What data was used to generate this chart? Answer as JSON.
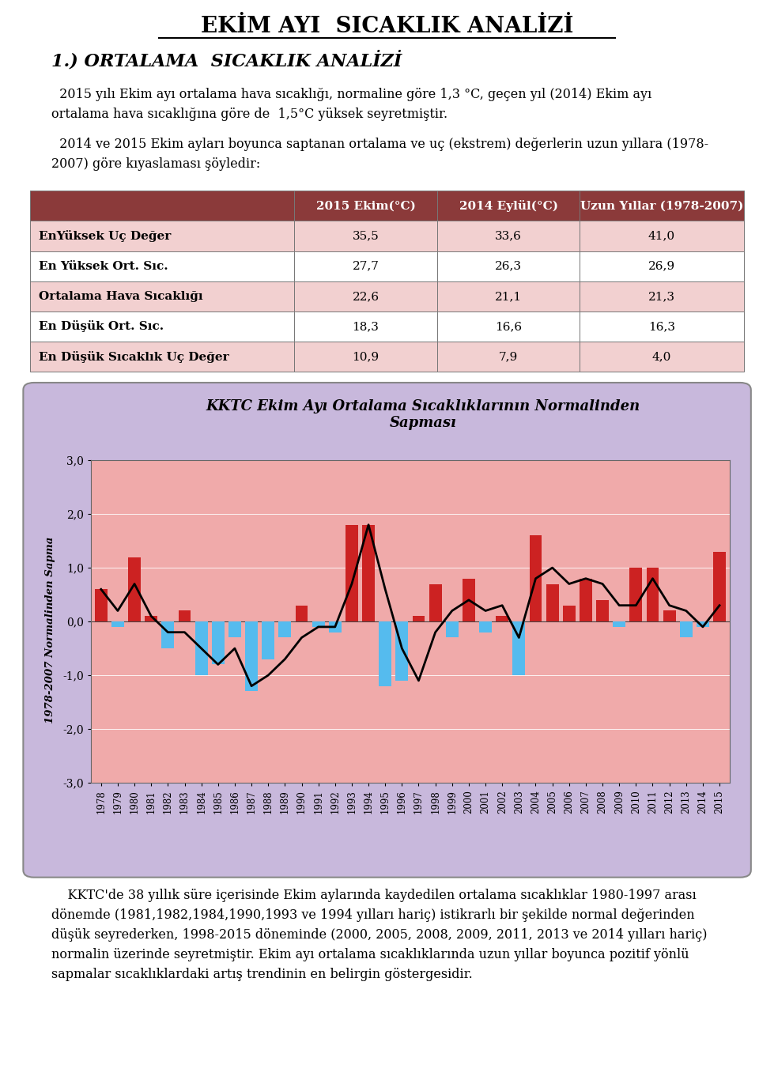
{
  "title": "EKİM AYI  SICAKLIK ANALİZİ",
  "subtitle": "1.) ORTALAMA  SICAKLIK ANALİZİ",
  "paragraph1": "  2015 yılı Ekim ayı ortalama hava sıcaklığı, normaline göre 1,3 °C, geçen yıl (2014) Ekim ayı\nortalama hava sıcaklığına göre de  1,5°C yüksek seyretmiştir.",
  "paragraph2": "  2014 ve 2015 Ekim ayları boyunca saptanan ortalama ve uç (ekstrem) değerlerin uzun yıllara (1978-\n2007) göre kıyaslaması şöyledir:",
  "table_headers": [
    "",
    "2015 Ekim(°C)",
    "2014 Eylül(°C)",
    "Uzun Yıllar (1978-2007)"
  ],
  "table_rows": [
    [
      "EnYüksek Uç Değer",
      "35,5",
      "33,6",
      "41,0"
    ],
    [
      "En Yüksek Ort. Sıc.",
      "27,7",
      "26,3",
      "26,9"
    ],
    [
      "Ortalama Hava Sıcaklığı",
      "22,6",
      "21,1",
      "21,3"
    ],
    [
      "En Düşük Ort. Sıc.",
      "18,3",
      "16,6",
      "16,3"
    ],
    [
      "En Düşük Sıcaklık Uç Değer",
      "10,9",
      "7,9",
      "4,0"
    ]
  ],
  "chart_title": "KKTC Ekim Ayı Ortalama Sıcaklıklarının Normalinden\nSapması",
  "ylabel": "1978-2007 Normalinden Sapma",
  "years": [
    1978,
    1979,
    1980,
    1981,
    1982,
    1983,
    1984,
    1985,
    1986,
    1987,
    1988,
    1989,
    1990,
    1991,
    1992,
    1993,
    1994,
    1995,
    1996,
    1997,
    1998,
    1999,
    2000,
    2001,
    2002,
    2003,
    2004,
    2005,
    2006,
    2007,
    2008,
    2009,
    2010,
    2011,
    2012,
    2013,
    2014,
    2015
  ],
  "bar_values": [
    0.6,
    -0.1,
    1.2,
    0.1,
    -0.5,
    0.2,
    -1.0,
    -0.8,
    -0.3,
    -1.3,
    -0.7,
    -0.3,
    0.3,
    -0.1,
    -0.2,
    1.8,
    1.8,
    -1.2,
    -1.1,
    0.1,
    0.7,
    -0.3,
    0.8,
    -0.2,
    0.1,
    -1.0,
    1.6,
    0.7,
    0.3,
    0.8,
    0.4,
    -0.1,
    1.0,
    1.0,
    0.2,
    -0.3,
    -0.1,
    1.3
  ],
  "line_values": [
    0.6,
    0.2,
    0.7,
    0.1,
    -0.2,
    -0.2,
    -0.5,
    -0.8,
    -0.5,
    -1.2,
    -1.0,
    -0.7,
    -0.3,
    -0.1,
    -0.1,
    0.7,
    1.8,
    0.6,
    -0.5,
    -1.1,
    -0.2,
    0.2,
    0.4,
    0.2,
    0.3,
    -0.3,
    0.8,
    1.0,
    0.7,
    0.8,
    0.7,
    0.3,
    0.3,
    0.8,
    0.3,
    0.2,
    -0.1,
    0.3
  ],
  "paragraph3": "    KKTC'de 38 yıllık süre içerisinde Ekim aylarında kaydedilen ortalama sıcaklıklar 1980-1997 arası\ndönemde (1981,1982,1984,1990,1993 ve 1994 yılları hariç) istikrarlı bir şekilde normal değerinden\ndüşük seyrederken, 1998-2015 döneminde (2000, 2005, 2008, 2009, 2011, 2013 ve 2014 yılları hariç)\nnormalin üzerinde seyretmiştir. Ekim ayı ortalama sıcaklıklarında uzun yıllar boyunca pozitif yönlü\nsapmalar sıcaklıklardaki artış trendinin en belirgin göstergesidir.",
  "header_bg": "#8B3A3A",
  "row_bg_odd": "#F2D0D0",
  "row_bg_even": "#FFFFFF",
  "positive_bar_color": "#CC2222",
  "negative_bar_color": "#55BBEE",
  "line_color": "#000000",
  "chart_outer_bg": "#C8B8DC",
  "chart_inner_bg": "#F0AAAA",
  "ylim": [
    -3.0,
    3.0
  ],
  "yticks": [
    -3.0,
    -2.0,
    -1.0,
    0.0,
    1.0,
    2.0,
    3.0
  ]
}
